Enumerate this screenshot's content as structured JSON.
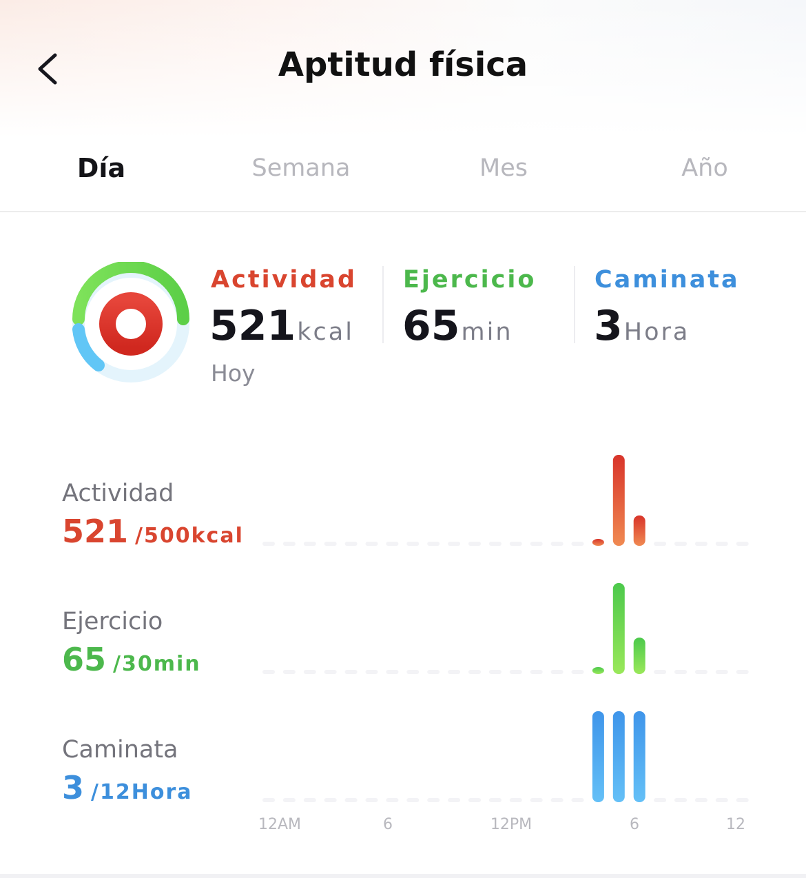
{
  "header": {
    "title": "Aptitud física",
    "back_icon": "chevron-left-icon"
  },
  "tabs": [
    {
      "label": "Día",
      "active": true
    },
    {
      "label": "Semana",
      "active": false
    },
    {
      "label": "Mes",
      "active": false
    },
    {
      "label": "Año",
      "active": false
    }
  ],
  "summary": {
    "ring_icon": "activity-rings-icon",
    "rings": {
      "activity": {
        "color": "#e0392b",
        "progress": 1.0
      },
      "exercise": {
        "color": "#7ed957",
        "progress": 1.0
      },
      "walk": {
        "color": "#5fc3f5",
        "progress": 0.25
      }
    },
    "activity": {
      "label": "Actividad",
      "value": "521",
      "unit": "kcal",
      "color": "#d9452f"
    },
    "exercise": {
      "label": "Ejercicio",
      "value": "65",
      "unit": "min",
      "color": "#4cb84c"
    },
    "walk": {
      "label": "Caminata",
      "value": "3",
      "unit": "Hora",
      "color": "#3d8fdc"
    },
    "period_label": "Hoy"
  },
  "rows": [
    {
      "label": "Actividad",
      "value": "521",
      "goal": "/500kcal",
      "color": "#d9452f"
    },
    {
      "label": "Ejercicio",
      "value": "65",
      "goal": "/30min",
      "color": "#4cb84c"
    },
    {
      "label": "Caminata",
      "value": "3",
      "goal": "/12Hora",
      "color": "#3d8fdc"
    }
  ],
  "chart_data": [
    {
      "type": "bar",
      "name": "Actividad",
      "x": [
        0,
        1,
        2,
        3,
        4,
        5,
        6,
        7,
        8,
        9,
        10,
        11,
        12,
        13,
        14,
        15,
        16,
        17,
        18,
        19,
        20,
        21,
        22,
        23
      ],
      "values": [
        0,
        0,
        0,
        0,
        0,
        0,
        0,
        0,
        0,
        0,
        0,
        0,
        0,
        0,
        0,
        0,
        1,
        15,
        5,
        0,
        0,
        0,
        0,
        0
      ],
      "ylim": [
        0,
        15
      ],
      "colors": [
        "#f08a52",
        "#d8342a"
      ]
    },
    {
      "type": "bar",
      "name": "Ejercicio",
      "x": [
        0,
        1,
        2,
        3,
        4,
        5,
        6,
        7,
        8,
        9,
        10,
        11,
        12,
        13,
        14,
        15,
        16,
        17,
        18,
        19,
        20,
        21,
        22,
        23
      ],
      "values": [
        0,
        0,
        0,
        0,
        0,
        0,
        0,
        0,
        0,
        0,
        0,
        0,
        0,
        0,
        0,
        0,
        1,
        15,
        6,
        0,
        0,
        0,
        0,
        0
      ],
      "ylim": [
        0,
        15
      ],
      "colors": [
        "#9ae85a",
        "#4cc94c"
      ]
    },
    {
      "type": "bar",
      "name": "Caminata",
      "x": [
        0,
        1,
        2,
        3,
        4,
        5,
        6,
        7,
        8,
        9,
        10,
        11,
        12,
        13,
        14,
        15,
        16,
        17,
        18,
        19,
        20,
        21,
        22,
        23
      ],
      "values": [
        0,
        0,
        0,
        0,
        0,
        0,
        0,
        0,
        0,
        0,
        0,
        0,
        0,
        0,
        0,
        0,
        1,
        1,
        1,
        0,
        0,
        0,
        0,
        0
      ],
      "ylim": [
        0,
        1
      ],
      "colors": [
        "#64c0f7",
        "#3f95ea"
      ]
    }
  ],
  "x_axis_ticks": [
    "12AM",
    "6",
    "12PM",
    "6",
    "12"
  ]
}
